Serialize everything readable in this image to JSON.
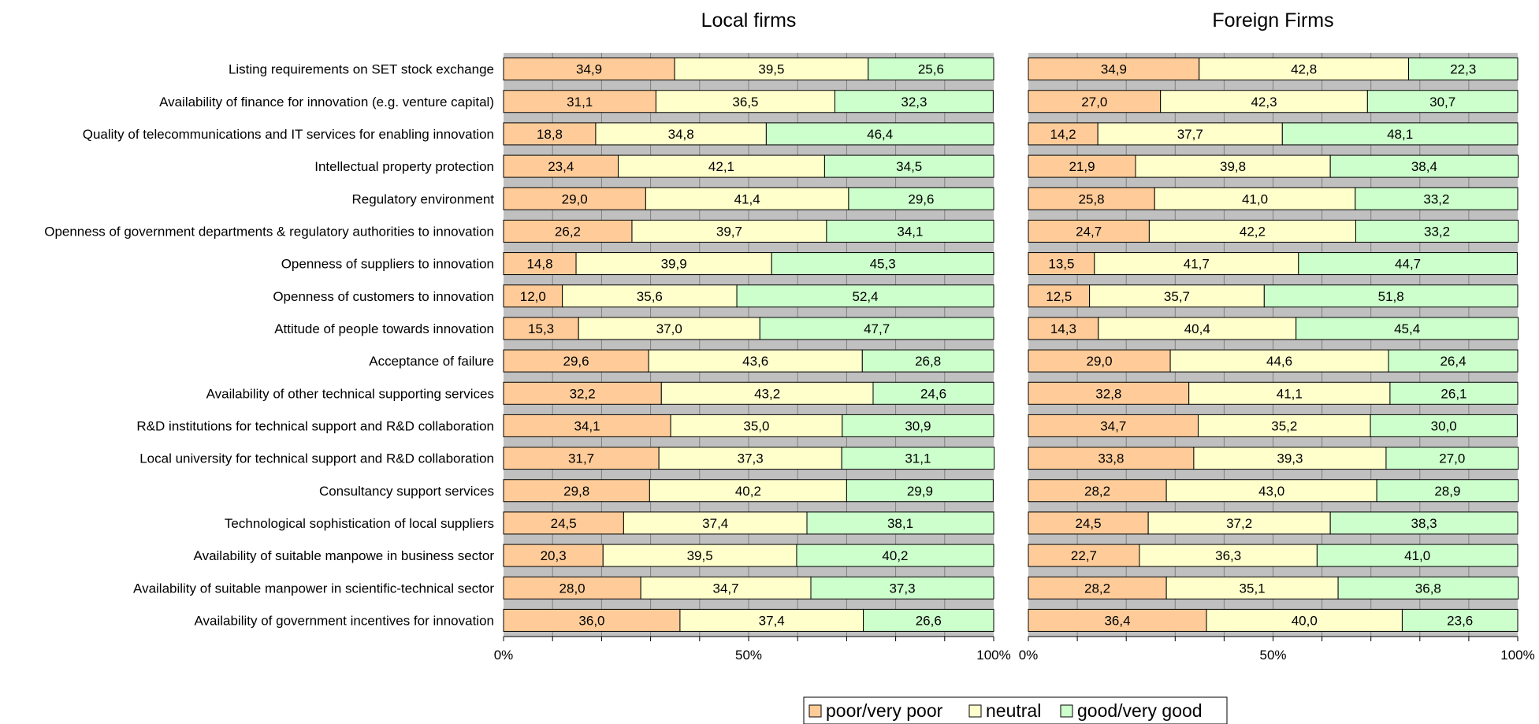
{
  "chart_data": {
    "type": "bar",
    "orientation": "horizontal",
    "stacked": "percent",
    "categories": [
      "Listing requirements on SET stock exchange",
      "Availability of finance for innovation (e.g. venture capital)",
      "Quality of telecommunications and IT services for enabling innovation",
      "Intellectual property protection",
      "Regulatory environment",
      "Openness of government departments & regulatory authorities to innovation",
      "Openness of suppliers to innovation",
      "Openness of customers to innovation",
      "Attitude of people towards innovation",
      "Acceptance of failure",
      "Availability of other technical supporting services",
      "R&D institutions for technical support and R&D collaboration",
      "Local university for technical support and R&D collaboration",
      "Consultancy support services",
      "Technological sophistication of local suppliers",
      "Availability of suitable manpowe in business sector",
      "Availability of suitable manpower in scientific-technical sector",
      "Availability of government incentives for innovation"
    ],
    "colors": {
      "poor": "#FFCC99",
      "neutral": "#FFFFCC",
      "good": "#CCFFCC",
      "background": "#C0C0C0"
    },
    "xlim": [
      0,
      100
    ],
    "xticks": [
      "0%",
      "50%",
      "100%"
    ],
    "grid": true,
    "legend_position": "bottom-center",
    "legend": [
      "poor/very poor",
      "neutral",
      "good/very good"
    ],
    "panels": [
      {
        "title": "Local firms",
        "series": [
          {
            "name": "poor/very poor",
            "values": [
              "34,9",
              "31,1",
              "18,8",
              "23,4",
              "29,0",
              "26,2",
              "14,8",
              "12,0",
              "15,3",
              "29,6",
              "32,2",
              "34,1",
              "31,7",
              "29,8",
              "24,5",
              "20,3",
              "28,0",
              "36,0"
            ]
          },
          {
            "name": "neutral",
            "values": [
              "39,5",
              "36,5",
              "34,8",
              "42,1",
              "41,4",
              "39,7",
              "39,9",
              "35,6",
              "37,0",
              "43,6",
              "43,2",
              "35,0",
              "37,3",
              "40,2",
              "37,4",
              "39,5",
              "34,7",
              "37,4"
            ]
          },
          {
            "name": "good/very good",
            "values": [
              "25,6",
              "32,3",
              "46,4",
              "34,5",
              "29,6",
              "34,1",
              "45,3",
              "52,4",
              "47,7",
              "26,8",
              "24,6",
              "30,9",
              "31,1",
              "29,9",
              "38,1",
              "40,2",
              "37,3",
              "26,6"
            ]
          }
        ]
      },
      {
        "title": "Foreign Firms",
        "series": [
          {
            "name": "poor/very poor",
            "values": [
              "34,9",
              "27,0",
              "14,2",
              "21,9",
              "25,8",
              "24,7",
              "13,5",
              "12,5",
              "14,3",
              "29,0",
              "32,8",
              "34,7",
              "33,8",
              "28,2",
              "24,5",
              "22,7",
              "28,2",
              "36,4"
            ]
          },
          {
            "name": "neutral",
            "values": [
              "42,8",
              "42,3",
              "37,7",
              "39,8",
              "41,0",
              "42,2",
              "41,7",
              "35,7",
              "40,4",
              "44,6",
              "41,1",
              "35,2",
              "39,3",
              "43,0",
              "37,2",
              "36,3",
              "35,1",
              "40,0"
            ]
          },
          {
            "name": "good/very good",
            "values": [
              "22,3",
              "30,7",
              "48,1",
              "38,4",
              "33,2",
              "33,2",
              "44,7",
              "51,8",
              "45,4",
              "26,4",
              "26,1",
              "30,0",
              "27,0",
              "28,9",
              "38,3",
              "41,0",
              "36,8",
              "23,6"
            ]
          }
        ]
      }
    ]
  }
}
